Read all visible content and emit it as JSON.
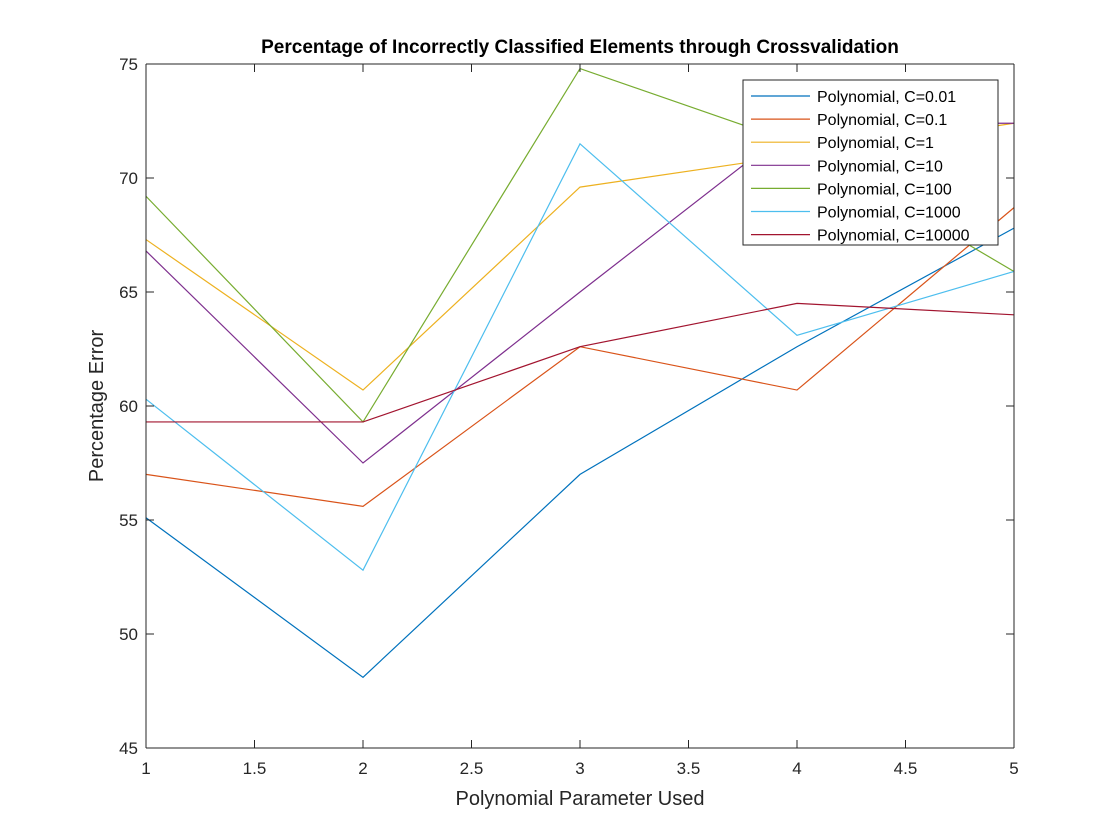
{
  "chart_data": {
    "type": "line",
    "title": "Percentage of Incorrectly Classified Elements through Crossvalidation",
    "xlabel": "Polynomial Parameter Used",
    "ylabel": "Percentage Error",
    "xlim": [
      1,
      5
    ],
    "ylim": [
      45,
      75
    ],
    "xticks": [
      1,
      1.5,
      2,
      2.5,
      3,
      3.5,
      4,
      4.5,
      5
    ],
    "xtick_labels": [
      "1",
      "1.5",
      "2",
      "2.5",
      "3",
      "3.5",
      "4",
      "4.5",
      "5"
    ],
    "yticks": [
      45,
      50,
      55,
      60,
      65,
      70,
      75
    ],
    "ytick_labels": [
      "45",
      "50",
      "55",
      "60",
      "65",
      "70",
      "75"
    ],
    "grid": false,
    "legend_position": "top-right",
    "x": [
      1,
      2,
      3,
      4,
      5
    ],
    "series": [
      {
        "name": "Polynomial, C=0.01",
        "color": "#0072BD",
        "values": [
          55.1,
          48.1,
          57.0,
          62.6,
          67.8
        ]
      },
      {
        "name": "Polynomial, C=0.1",
        "color": "#D95319",
        "values": [
          57.0,
          55.6,
          62.6,
          60.7,
          68.7
        ]
      },
      {
        "name": "Polynomial, C=1",
        "color": "#EDB120",
        "values": [
          67.3,
          60.7,
          69.6,
          71.0,
          72.4
        ]
      },
      {
        "name": "Polynomial, C=10",
        "color": "#7E2F8E",
        "values": [
          66.8,
          57.5,
          65.0,
          72.4,
          72.4
        ]
      },
      {
        "name": "Polynomial, C=100",
        "color": "#77AC30",
        "values": [
          69.2,
          59.3,
          74.8,
          71.5,
          65.9
        ]
      },
      {
        "name": "Polynomial, C=1000",
        "color": "#4DBEEE",
        "values": [
          60.3,
          52.8,
          71.5,
          63.1,
          65.9
        ]
      },
      {
        "name": "Polynomial, C=10000",
        "color": "#A2142F",
        "values": [
          59.3,
          59.3,
          62.6,
          64.5,
          64.0
        ]
      }
    ]
  }
}
